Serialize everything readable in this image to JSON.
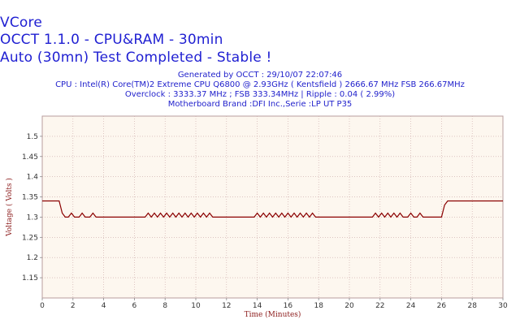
{
  "header": {
    "title": "VCore",
    "subtitle": "OCCT 1.1.0 - CPU&RAM - 30min",
    "status": "Auto (30mn) Test Completed - Stable !"
  },
  "info": {
    "generated": "Generated by OCCT : 29/10/07 22:07:46",
    "cpu": "CPU : Intel(R) Core(TM)2 Extreme CPU Q6800  @ 2.93GHz ( Kentsfield ) 2666.67 MHz FSB 266.67MHz",
    "overclock": "Overclock : 3333.37 MHz ; FSB 333.34MHz | Ripple : 0.04 ( 2.99%)",
    "motherboard": "Motherboard Brand :DFI Inc.,Serie :LP UT P35"
  },
  "colors": {
    "title": "#1f1fd2",
    "plot_bg": "#fdf7ef",
    "grid": "#c9a5a5",
    "line": "#8b0000",
    "axis_label": "#8b1a1a"
  },
  "chart_data": {
    "type": "line",
    "xlabel": "Time (Minutes)",
    "ylabel": "Voltage ( Volts )",
    "xlim": [
      0,
      30
    ],
    "ylim": [
      1.1,
      1.55
    ],
    "xticks": [
      0,
      2,
      4,
      6,
      8,
      10,
      12,
      14,
      16,
      18,
      20,
      22,
      24,
      26,
      28,
      30
    ],
    "yticks": [
      1.15,
      1.2,
      1.25,
      1.3,
      1.35,
      1.4,
      1.45,
      1.5
    ],
    "grid": true,
    "series": [
      {
        "values": [
          [
            0,
            1.34
          ],
          [
            1.1,
            1.34
          ],
          [
            1.3,
            1.31
          ],
          [
            1.5,
            1.3
          ],
          [
            1.7,
            1.3
          ],
          [
            1.9,
            1.31
          ],
          [
            2.1,
            1.3
          ],
          [
            2.4,
            1.3
          ],
          [
            2.6,
            1.31
          ],
          [
            2.8,
            1.3
          ],
          [
            3.1,
            1.3
          ],
          [
            3.3,
            1.31
          ],
          [
            3.5,
            1.3
          ],
          [
            6.7,
            1.3
          ],
          [
            6.9,
            1.31
          ],
          [
            7.1,
            1.3
          ],
          [
            7.3,
            1.31
          ],
          [
            7.5,
            1.3
          ],
          [
            7.7,
            1.31
          ],
          [
            7.9,
            1.3
          ],
          [
            8.1,
            1.31
          ],
          [
            8.3,
            1.3
          ],
          [
            8.5,
            1.31
          ],
          [
            8.7,
            1.3
          ],
          [
            8.9,
            1.31
          ],
          [
            9.1,
            1.3
          ],
          [
            9.3,
            1.31
          ],
          [
            9.5,
            1.3
          ],
          [
            9.7,
            1.31
          ],
          [
            9.9,
            1.3
          ],
          [
            10.1,
            1.31
          ],
          [
            10.3,
            1.3
          ],
          [
            10.5,
            1.31
          ],
          [
            10.7,
            1.3
          ],
          [
            10.9,
            1.31
          ],
          [
            11.1,
            1.3
          ],
          [
            13.8,
            1.3
          ],
          [
            14.0,
            1.31
          ],
          [
            14.2,
            1.3
          ],
          [
            14.4,
            1.31
          ],
          [
            14.6,
            1.3
          ],
          [
            14.8,
            1.31
          ],
          [
            15.0,
            1.3
          ],
          [
            15.2,
            1.31
          ],
          [
            15.4,
            1.3
          ],
          [
            15.6,
            1.31
          ],
          [
            15.8,
            1.3
          ],
          [
            16.0,
            1.31
          ],
          [
            16.2,
            1.3
          ],
          [
            16.4,
            1.31
          ],
          [
            16.6,
            1.3
          ],
          [
            16.8,
            1.31
          ],
          [
            17.0,
            1.3
          ],
          [
            17.2,
            1.31
          ],
          [
            17.4,
            1.3
          ],
          [
            17.6,
            1.31
          ],
          [
            17.8,
            1.3
          ],
          [
            21.5,
            1.3
          ],
          [
            21.7,
            1.31
          ],
          [
            21.9,
            1.3
          ],
          [
            22.1,
            1.31
          ],
          [
            22.3,
            1.3
          ],
          [
            22.5,
            1.31
          ],
          [
            22.7,
            1.3
          ],
          [
            22.9,
            1.31
          ],
          [
            23.1,
            1.3
          ],
          [
            23.3,
            1.31
          ],
          [
            23.5,
            1.3
          ],
          [
            23.8,
            1.3
          ],
          [
            24.0,
            1.31
          ],
          [
            24.2,
            1.3
          ],
          [
            24.4,
            1.3
          ],
          [
            24.6,
            1.31
          ],
          [
            24.8,
            1.3
          ],
          [
            26.0,
            1.3
          ],
          [
            26.2,
            1.33
          ],
          [
            26.4,
            1.34
          ],
          [
            30,
            1.34
          ]
        ]
      }
    ]
  }
}
